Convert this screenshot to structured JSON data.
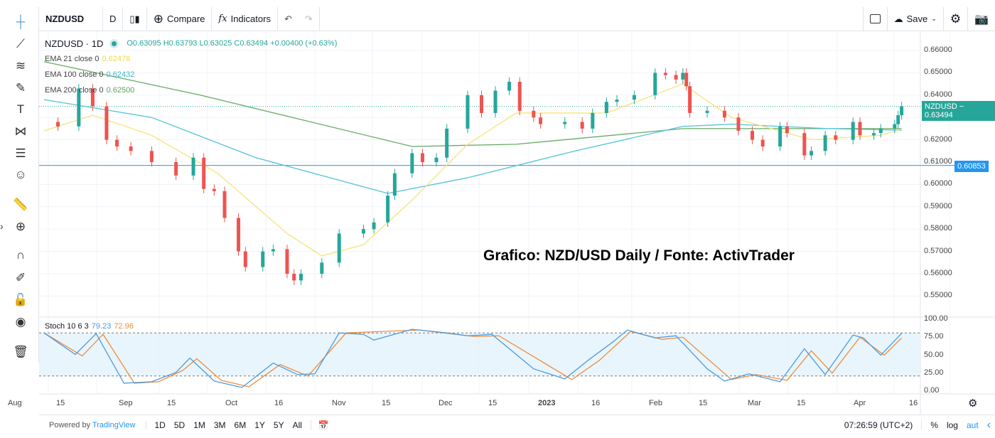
{
  "toolbar": {
    "symbol": "NZDUSD",
    "interval": "D",
    "compare": "Compare",
    "indicators": "Indicators",
    "save": "Save"
  },
  "legend": {
    "title": "NZDUSD · 1D",
    "ohlc": "O0.63095 H0.63793 L0.63025 C0.63494 +0.00400 (+0.63%)",
    "ema21_label": "EMA 21 close 0",
    "ema21_value": "0.62478",
    "ema100_label": "EMA 100 close 0",
    "ema100_value": "0.62432",
    "ema200_label": "EMA 200 close 0",
    "ema200_value": "0.62500",
    "stoch_label": "Stoch 10 6 3",
    "stoch_k": "79.23",
    "stoch_d": "72.96"
  },
  "watermark": "Grafico: NZD/USD Daily / Fonte: ActivTrader",
  "price_axis": [
    "0.66000",
    "0.65000",
    "0.64000",
    "0.63000",
    "0.62000",
    "0.61000",
    "0.60000",
    "0.59000",
    "0.58000",
    "0.57000",
    "0.56000",
    "0.55000"
  ],
  "stoch_axis": [
    "100.00",
    "75.00",
    "50.00",
    "25.00",
    "0.00"
  ],
  "last_price_label": "NZDUSD − 0.63494",
  "hline_label": "0.60853",
  "time_axis": [
    "Aug",
    "15",
    "Sep",
    "15",
    "Oct",
    "16",
    "Nov",
    "15",
    "Dec",
    "15",
    "2023",
    "16",
    "Feb",
    "15",
    "Mar",
    "15",
    "Apr",
    "16"
  ],
  "bottom": {
    "powered": "Powered by ",
    "brand": "TradingView",
    "ranges": [
      "1D",
      "5D",
      "1M",
      "3M",
      "6M",
      "1Y",
      "5Y",
      "All"
    ],
    "clock": "07:26:59 (UTC+2)",
    "pct": "%",
    "log": "log",
    "auto": "aut"
  },
  "colors": {
    "up": "#26a69a",
    "down": "#ef5350",
    "ema21": "#f5e47a",
    "ema100": "#4fc3d9",
    "ema200": "#66aa66",
    "stoch_k": "#4a9be0",
    "stoch_d": "#ef8c3a",
    "hline": "#2196f3"
  },
  "chart_data": {
    "type": "candlestick",
    "symbol": "NZDUSD",
    "interval": "1D",
    "ylim": [
      0.545,
      0.665
    ],
    "closes": [
      [
        "2022-08-01",
        0.628
      ],
      [
        "2022-08-05",
        0.626
      ],
      [
        "2022-08-11",
        0.643
      ],
      [
        "2022-08-15",
        0.635
      ],
      [
        "2022-08-19",
        0.62
      ],
      [
        "2022-08-22",
        0.617
      ],
      [
        "2022-08-26",
        0.615
      ],
      [
        "2022-09-01",
        0.61
      ],
      [
        "2022-09-08",
        0.604
      ],
      [
        "2022-09-13",
        0.612
      ],
      [
        "2022-09-16",
        0.598
      ],
      [
        "2022-09-19",
        0.597
      ],
      [
        "2022-09-22",
        0.585
      ],
      [
        "2022-09-26",
        0.57
      ],
      [
        "2022-09-28",
        0.563
      ],
      [
        "2022-10-03",
        0.57
      ],
      [
        "2022-10-06",
        0.571
      ],
      [
        "2022-10-10",
        0.56
      ],
      [
        "2022-10-12",
        0.557
      ],
      [
        "2022-10-14",
        0.56
      ],
      [
        "2022-10-20",
        0.565
      ],
      [
        "2022-10-25",
        0.578
      ],
      [
        "2022-11-01",
        0.58
      ],
      [
        "2022-11-04",
        0.583
      ],
      [
        "2022-11-08",
        0.595
      ],
      [
        "2022-11-10",
        0.605
      ],
      [
        "2022-11-15",
        0.614
      ],
      [
        "2022-11-18",
        0.61
      ],
      [
        "2022-11-22",
        0.612
      ],
      [
        "2022-11-25",
        0.625
      ],
      [
        "2022-12-01",
        0.64
      ],
      [
        "2022-12-05",
        0.632
      ],
      [
        "2022-12-09",
        0.642
      ],
      [
        "2022-12-13",
        0.646
      ],
      [
        "2022-12-16",
        0.633
      ],
      [
        "2022-12-20",
        0.63
      ],
      [
        "2022-12-22",
        0.627
      ],
      [
        "2022-12-29",
        0.628
      ],
      [
        "2023-01-03",
        0.625
      ],
      [
        "2023-01-06",
        0.632
      ],
      [
        "2023-01-10",
        0.637
      ],
      [
        "2023-01-13",
        0.638
      ],
      [
        "2023-01-18",
        0.64
      ],
      [
        "2023-01-24",
        0.65
      ],
      [
        "2023-01-27",
        0.649
      ],
      [
        "2023-01-30",
        0.647
      ],
      [
        "2023-02-01",
        0.65
      ],
      [
        "2023-02-02",
        0.644
      ],
      [
        "2023-02-03",
        0.632
      ],
      [
        "2023-02-08",
        0.633
      ],
      [
        "2023-02-13",
        0.63
      ],
      [
        "2023-02-17",
        0.624
      ],
      [
        "2023-02-21",
        0.62
      ],
      [
        "2023-02-24",
        0.617
      ],
      [
        "2023-03-01",
        0.626
      ],
      [
        "2023-03-03",
        0.623
      ],
      [
        "2023-03-08",
        0.613
      ],
      [
        "2023-03-10",
        0.615
      ],
      [
        "2023-03-14",
        0.622
      ],
      [
        "2023-03-17",
        0.62
      ],
      [
        "2023-03-22",
        0.628
      ],
      [
        "2023-03-24",
        0.622
      ],
      [
        "2023-03-28",
        0.623
      ],
      [
        "2023-03-30",
        0.625
      ],
      [
        "2023-04-03",
        0.627
      ],
      [
        "2023-04-04",
        0.631
      ],
      [
        "2023-04-05",
        0.635
      ]
    ],
    "ema21": [
      [
        "2022-08-01",
        0.624
      ],
      [
        "2022-08-15",
        0.631
      ],
      [
        "2022-09-01",
        0.622
      ],
      [
        "2022-09-20",
        0.605
      ],
      [
        "2022-10-10",
        0.578
      ],
      [
        "2022-10-20",
        0.568
      ],
      [
        "2022-11-01",
        0.573
      ],
      [
        "2022-11-15",
        0.593
      ],
      [
        "2022-12-01",
        0.618
      ],
      [
        "2022-12-15",
        0.632
      ],
      [
        "2023-01-10",
        0.632
      ],
      [
        "2023-02-01",
        0.645
      ],
      [
        "2023-02-15",
        0.63
      ],
      [
        "2023-03-10",
        0.62
      ],
      [
        "2023-03-30",
        0.622
      ],
      [
        "2023-04-05",
        0.6248
      ]
    ],
    "ema100": [
      [
        "2022-08-01",
        0.638
      ],
      [
        "2022-09-01",
        0.63
      ],
      [
        "2022-10-01",
        0.612
      ],
      [
        "2022-11-08",
        0.596
      ],
      [
        "2022-12-01",
        0.603
      ],
      [
        "2023-01-01",
        0.615
      ],
      [
        "2023-02-01",
        0.626
      ],
      [
        "2023-02-15",
        0.627
      ],
      [
        "2023-03-15",
        0.625
      ],
      [
        "2023-04-05",
        0.6243
      ]
    ],
    "ema200": [
      [
        "2022-08-01",
        0.655
      ],
      [
        "2022-09-15",
        0.64
      ],
      [
        "2022-11-15",
        0.617
      ],
      [
        "2022-12-15",
        0.618
      ],
      [
        "2023-02-01",
        0.625
      ],
      [
        "2023-03-01",
        0.625
      ],
      [
        "2023-04-05",
        0.625
      ]
    ],
    "hline": 0.60853,
    "stoch": {
      "ylim": [
        0,
        100
      ],
      "bands": [
        20,
        80
      ],
      "k": [
        [
          "2022-08-01",
          80
        ],
        [
          "2022-08-10",
          50
        ],
        [
          "2022-08-16",
          79
        ],
        [
          "2022-08-24",
          10
        ],
        [
          "2022-09-01",
          12
        ],
        [
          "2022-09-08",
          25
        ],
        [
          "2022-09-12",
          45
        ],
        [
          "2022-09-19",
          13
        ],
        [
          "2022-09-27",
          4
        ],
        [
          "2022-10-06",
          38
        ],
        [
          "2022-10-13",
          22
        ],
        [
          "2022-10-18",
          23
        ],
        [
          "2022-10-25",
          80
        ],
        [
          "2022-11-01",
          78
        ],
        [
          "2022-11-04",
          70
        ],
        [
          "2022-11-15",
          85
        ],
        [
          "2022-11-25",
          80
        ],
        [
          "2022-12-01",
          76
        ],
        [
          "2022-12-08",
          78
        ],
        [
          "2022-12-20",
          30
        ],
        [
          "2022-12-29",
          16
        ],
        [
          "2023-01-05",
          43
        ],
        [
          "2023-01-12",
          68
        ],
        [
          "2023-01-16",
          84
        ],
        [
          "2023-01-24",
          73
        ],
        [
          "2023-01-30",
          76
        ],
        [
          "2023-02-08",
          30
        ],
        [
          "2023-02-13",
          13
        ],
        [
          "2023-02-20",
          23
        ],
        [
          "2023-03-01",
          12
        ],
        [
          "2023-03-08",
          58
        ],
        [
          "2023-03-14",
          22
        ],
        [
          "2023-03-22",
          77
        ],
        [
          "2023-03-25",
          73
        ],
        [
          "2023-03-30",
          49
        ],
        [
          "2023-04-05",
          79.23
        ]
      ],
      "d": [
        [
          "2022-08-01",
          80
        ],
        [
          "2022-08-12",
          48
        ],
        [
          "2022-08-18",
          78
        ],
        [
          "2022-08-27",
          10
        ],
        [
          "2022-09-03",
          12
        ],
        [
          "2022-09-10",
          28
        ],
        [
          "2022-09-14",
          44
        ],
        [
          "2022-09-21",
          14
        ],
        [
          "2022-09-29",
          5
        ],
        [
          "2022-10-08",
          36
        ],
        [
          "2022-10-16",
          20
        ],
        [
          "2022-10-27",
          80
        ],
        [
          "2022-11-17",
          84
        ],
        [
          "2022-12-03",
          75
        ],
        [
          "2022-12-10",
          76
        ],
        [
          "2022-12-31",
          15
        ],
        [
          "2023-01-08",
          42
        ],
        [
          "2023-01-17",
          82
        ],
        [
          "2023-01-26",
          71
        ],
        [
          "2023-02-01",
          74
        ],
        [
          "2023-02-15",
          15
        ],
        [
          "2023-02-22",
          22
        ],
        [
          "2023-03-03",
          14
        ],
        [
          "2023-03-10",
          55
        ],
        [
          "2023-03-16",
          24
        ],
        [
          "2023-03-24",
          74
        ],
        [
          "2023-03-31",
          49
        ],
        [
          "2023-04-05",
          72.96
        ]
      ]
    }
  }
}
